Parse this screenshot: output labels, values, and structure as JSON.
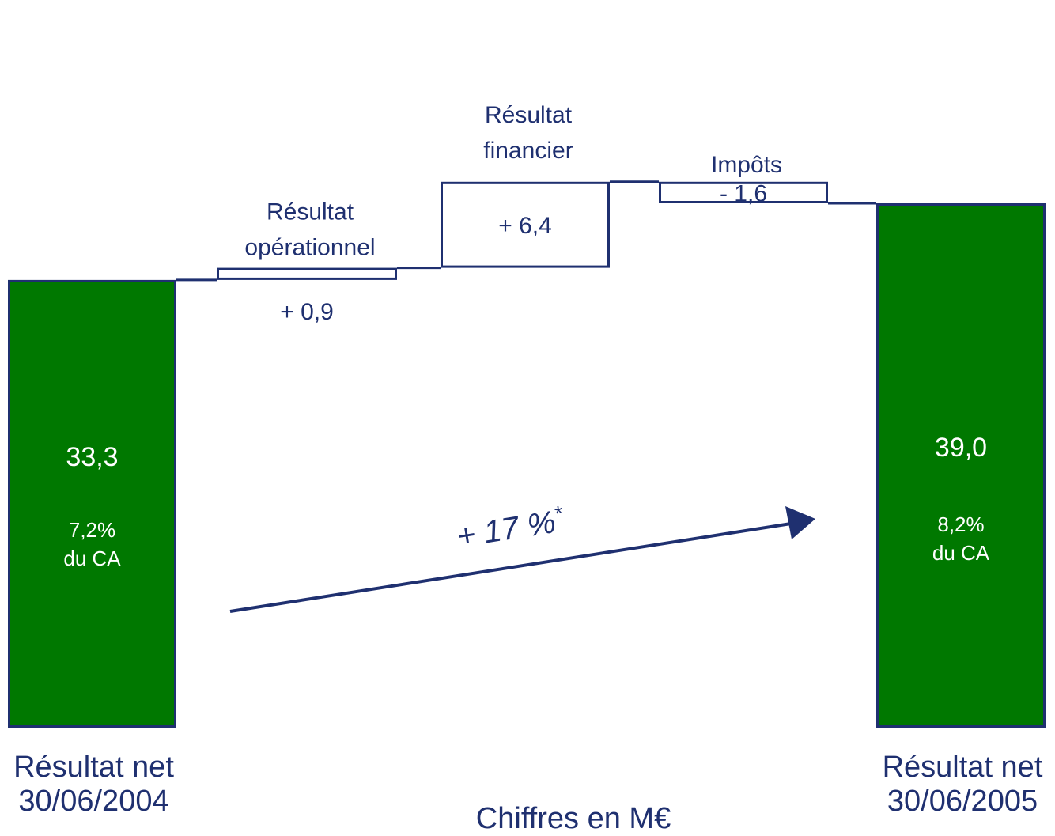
{
  "chart_data": {
    "type": "bar",
    "subtype": "waterfall",
    "unit_note": "Chiffres en M€",
    "categories": [
      "Résultat net 30/06/2004",
      "Résultat opérationnel",
      "Résultat financier",
      "Impôts",
      "Résultat net 30/06/2005"
    ],
    "steps": [
      {
        "kind": "total",
        "label_lines": [
          "Résultat net",
          "30/06/2004"
        ],
        "value": 33.3,
        "value_label": "33,3",
        "note_lines": [
          "7,2%",
          "du CA"
        ]
      },
      {
        "kind": "delta",
        "label_lines": [
          "Résultat",
          "opérationnel"
        ],
        "value": 0.9,
        "value_label": "+ 0,9"
      },
      {
        "kind": "delta",
        "label_lines": [
          "Résultat",
          "financier"
        ],
        "value": 6.4,
        "value_label": "+ 6,4"
      },
      {
        "kind": "delta",
        "label_lines": [
          "Impôts"
        ],
        "value": -1.6,
        "value_label": "- 1,6"
      },
      {
        "kind": "total",
        "label_lines": [
          "Résultat net",
          "30/06/2005"
        ],
        "value": 39.0,
        "value_label": "39,0",
        "note_lines": [
          "8,2%",
          "du CA"
        ]
      }
    ],
    "growth_annotation": {
      "text": "+ 17 %",
      "superscript": "*"
    },
    "colors": {
      "total_fill": "#007800",
      "outline": "#1f3070",
      "delta_fill": "#ffffff",
      "text_dark": "#1f3070",
      "text_light": "#ffffff",
      "arrow": "#1f3070"
    }
  }
}
